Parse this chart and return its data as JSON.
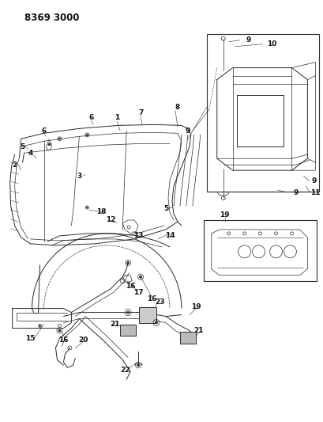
{
  "title": "8369 3000",
  "bg_color": "#ffffff",
  "line_color": "#2a2a2a",
  "title_fontsize": 8.5,
  "label_fontsize": 6.5,
  "figsize": [
    4.1,
    5.33
  ],
  "dpi": 100
}
